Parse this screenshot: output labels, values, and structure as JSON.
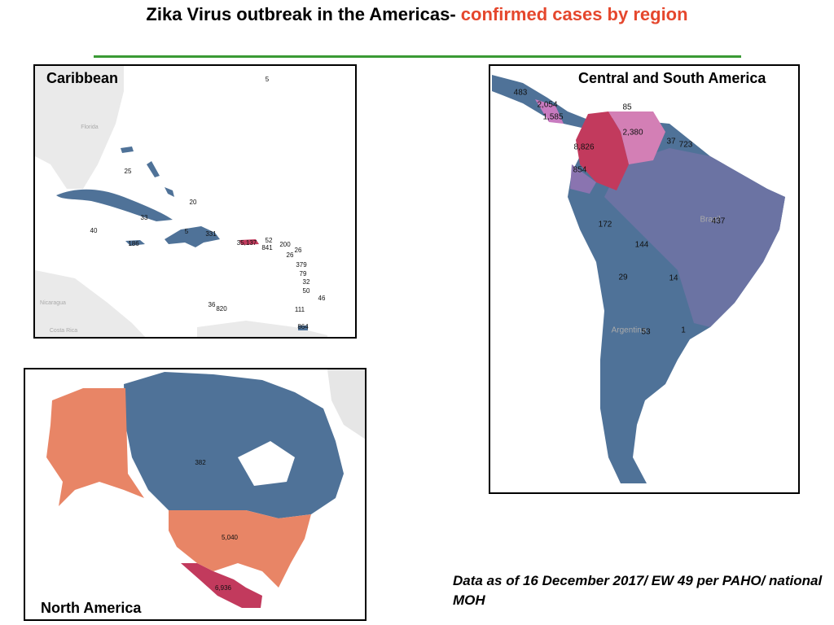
{
  "title": {
    "main": "Zika Virus outbreak in the Americas-",
    "highlight": "confirmed cases by region"
  },
  "panels": [
    {
      "name": "Caribbean",
      "places": [
        "Florida",
        "Nicaragua",
        "Costa Rica"
      ],
      "labels": [
        "5",
        "25",
        "20",
        "33",
        "40",
        "5",
        "331",
        "186",
        "35,137",
        "52",
        "841",
        "200",
        "26",
        "26",
        "379",
        "79",
        "32",
        "50",
        "46",
        "36",
        "820",
        "111",
        "864"
      ]
    },
    {
      "name": "Central and South America",
      "places": [
        "Brazil",
        "Argentina"
      ],
      "labels": [
        "483",
        "2,054",
        "1,585",
        "85",
        "2,380",
        "8,826",
        "37",
        "723",
        "854",
        "172",
        "437",
        "144",
        "29",
        "14",
        "53",
        "1"
      ]
    },
    {
      "name": "North America",
      "places": [],
      "labels": [
        "382",
        "5,040",
        "6,936"
      ]
    }
  ],
  "footnote": "Data as of 16 December 2017/ EW 49 per PAHO/ national MOH"
}
